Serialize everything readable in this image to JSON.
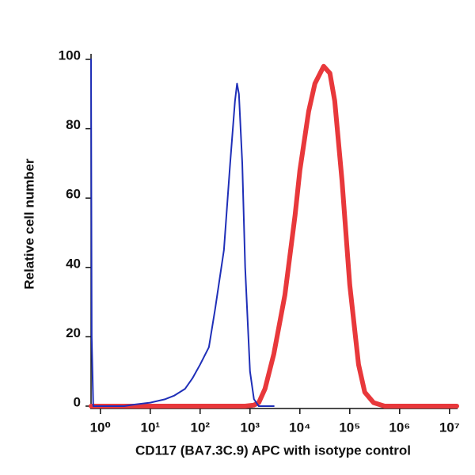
{
  "chart_data": {
    "type": "line",
    "x_label": "CD117 (BA7.3C.9) APC with isotype control",
    "y_label": "Relative cell number",
    "xscale": "log",
    "xlim": [
      0.65,
      14000000
    ],
    "ylim": [
      0,
      100
    ],
    "xticks": [
      {
        "value": 1,
        "label": "10⁰"
      },
      {
        "value": 10,
        "label": "10¹"
      },
      {
        "value": 100,
        "label": "10²"
      },
      {
        "value": 1000,
        "label": "10³"
      },
      {
        "value": 10000,
        "label": "10⁴"
      },
      {
        "value": 100000,
        "label": "10⁵"
      },
      {
        "value": 1000000,
        "label": "10⁶"
      },
      {
        "value": 10000000,
        "label": "10⁷"
      }
    ],
    "yticks": [
      0,
      20,
      40,
      60,
      80,
      100
    ],
    "series": [
      {
        "color": "#e8383b",
        "width": 6,
        "x": [
          0.65,
          100,
          800,
          1200,
          1500,
          2000,
          3000,
          5000,
          8000,
          10000,
          15000,
          20000,
          30000,
          40000,
          50000,
          70000,
          100000,
          150000,
          200000,
          300000,
          500000,
          14000000
        ],
        "values": [
          0,
          0,
          0,
          0.3,
          1,
          5,
          15,
          32,
          55,
          68,
          85,
          93,
          98,
          96,
          88,
          65,
          35,
          12,
          4,
          1,
          0,
          0
        ]
      },
      {
        "color": "#1f2fb8",
        "width": 2,
        "x": [
          0.65,
          0.67,
          0.72,
          1,
          3,
          5,
          10,
          20,
          30,
          50,
          70,
          100,
          150,
          200,
          300,
          400,
          500,
          550,
          600,
          700,
          800,
          1000,
          1200,
          1500,
          3000
        ],
        "values": [
          100,
          20,
          0,
          0,
          0,
          0.5,
          1,
          2,
          3,
          5,
          8,
          12,
          17,
          28,
          45,
          70,
          88,
          93,
          90,
          70,
          40,
          10,
          2,
          0,
          0
        ]
      }
    ]
  }
}
